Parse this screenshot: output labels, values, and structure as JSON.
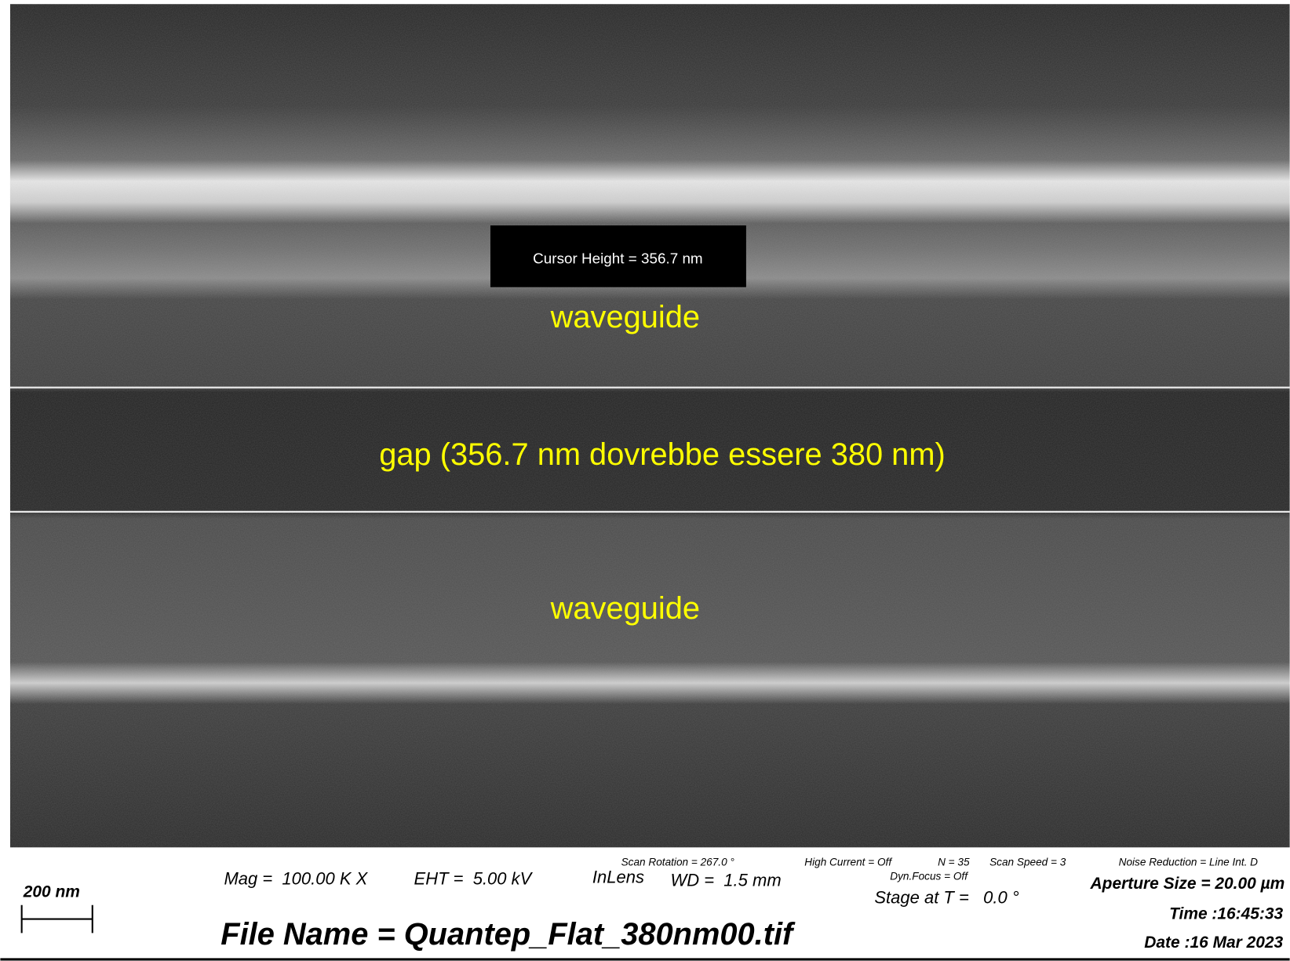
{
  "annotations": {
    "waveguide_top": "waveguide",
    "gap": "gap (356.7 nm dovrebbe essere 380 nm)",
    "waveguide_bottom": "waveguide"
  },
  "cursor": {
    "label": "Cursor Height = 356.7 nm"
  },
  "info_panel": {
    "scale_bar": "200 nm",
    "scan_rotation": "Scan Rotation = 267.0 °",
    "high_current": "High Current = Off",
    "n": "N = 35",
    "scan_speed": "Scan Speed = 3",
    "noise_reduction": "Noise Reduction = Line Int. D",
    "mag": "Mag =  100.00 K X",
    "eht": "EHT =  5.00 kV",
    "detector": "InLens",
    "wd": "WD =  1.5 mm",
    "dyn_focus": "Dyn.Focus = Off",
    "stage": "Stage at T =   0.0 °",
    "aperture": "Aperture Size = 20.00 µm",
    "time": "Time :16:45:33",
    "date": "Date :16 Mar 2023",
    "file_name": "File Name = Quantep_Flat_380nm00.tif"
  }
}
